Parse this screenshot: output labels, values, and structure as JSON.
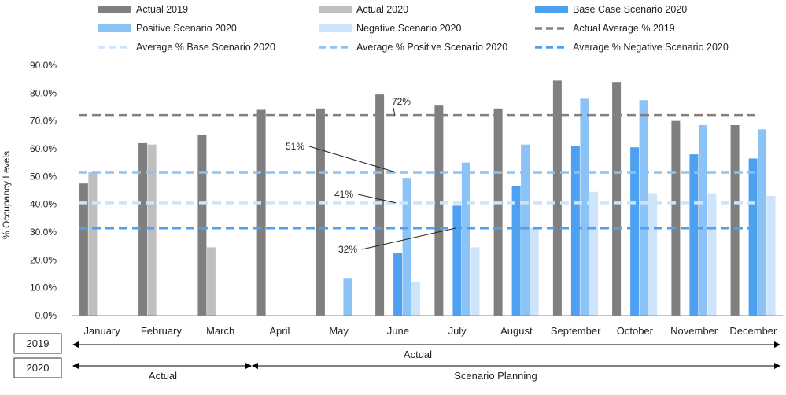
{
  "chart_data": {
    "type": "bar",
    "ylabel": "% Occupancy Levels",
    "ylim": [
      0,
      0.9
    ],
    "yticks": [
      "0.0%",
      "10.0%",
      "20.0%",
      "30.0%",
      "40.0%",
      "50.0%",
      "60.0%",
      "70.0%",
      "80.0%",
      "90.0%"
    ],
    "grid": false,
    "legend_position": "top",
    "categories": [
      "January",
      "February",
      "March",
      "April",
      "May",
      "June",
      "July",
      "August",
      "September",
      "October",
      "November",
      "December"
    ],
    "series": [
      {
        "name": "Actual 2019",
        "color": "#7f7f7f",
        "values": [
          0.475,
          0.62,
          0.65,
          0.74,
          0.745,
          0.795,
          0.755,
          0.745,
          0.845,
          0.84,
          0.7,
          0.685
        ]
      },
      {
        "name": "Actual 2020",
        "color": "#bfbfbf",
        "values": [
          0.515,
          0.615,
          0.245,
          null,
          null,
          null,
          null,
          null,
          null,
          null,
          null,
          null
        ]
      },
      {
        "name": "Base Case Scenario 2020",
        "color": "#4ea1f0",
        "values": [
          null,
          null,
          null,
          null,
          null,
          0.225,
          0.395,
          0.465,
          0.61,
          0.605,
          0.58,
          0.565
        ]
      },
      {
        "name": "Positive Scenario 2020",
        "color": "#8cc3f7",
        "values": [
          null,
          null,
          null,
          null,
          0.135,
          0.495,
          0.55,
          0.615,
          0.78,
          0.775,
          0.685,
          0.67
        ]
      },
      {
        "name": "Negative Scenario 2020",
        "color": "#cde4fa",
        "values": [
          null,
          null,
          null,
          null,
          null,
          0.12,
          0.245,
          0.315,
          0.445,
          0.44,
          0.44,
          0.43
        ]
      }
    ],
    "reference_lines": [
      {
        "name": "Actual Average % 2019",
        "value": 0.72,
        "color": "#8a7f78",
        "label": "72%"
      },
      {
        "name": "Average % Base Scenario 2020",
        "value": 0.405,
        "color": "#cde4fa",
        "label": "41%"
      },
      {
        "name": "Average % Positive Scenario 2020",
        "value": 0.515,
        "color": "#8cc3f7",
        "label": "51%"
      },
      {
        "name": "Average % Negative Scenario 2020",
        "value": 0.315,
        "color": "#4ea1f0",
        "label": "32%"
      }
    ],
    "timeline": {
      "row_2019": {
        "year": "2019",
        "label": "Actual"
      },
      "row_2020": {
        "year": "2020",
        "actual_label": "Actual",
        "scenario_label": "Scenario Planning"
      }
    }
  }
}
